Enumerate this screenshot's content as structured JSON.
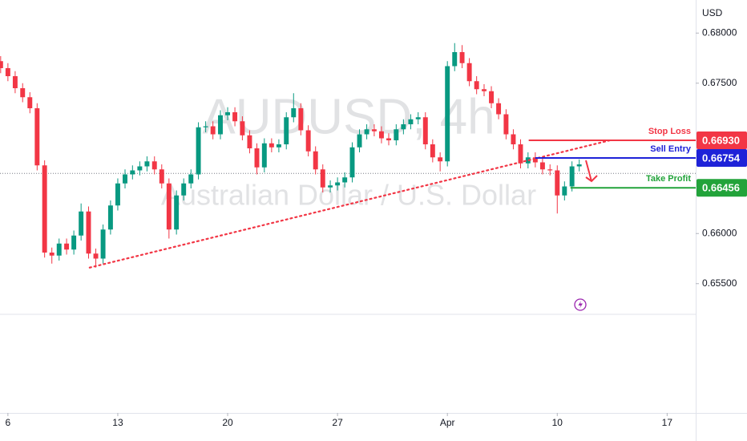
{
  "chart_data": {
    "type": "candlestick",
    "watermark": {
      "title": "AUDUSD, 4h",
      "subtitle": "Australian Dollar / U.S. Dollar"
    },
    "y_axis_label": "USD",
    "xlim": [
      -0.36,
      31.3
    ],
    "ylim": [
      0.6421,
      0.6833
    ],
    "xticks": [
      {
        "value": 0,
        "label": "6"
      },
      {
        "value": 5,
        "label": "13"
      },
      {
        "value": 10,
        "label": "20"
      },
      {
        "value": 15,
        "label": "27"
      },
      {
        "value": 20,
        "label": "Apr"
      },
      {
        "value": 25,
        "label": "10"
      },
      {
        "value": 30,
        "label": "17"
      }
    ],
    "yticks": [
      {
        "value": 0.68,
        "label": "0.68000"
      },
      {
        "value": 0.675,
        "label": "0.67500"
      },
      {
        "value": 0.66,
        "label": "0.66000"
      },
      {
        "value": 0.655,
        "label": "0.65500"
      }
    ],
    "up_color": "#089981",
    "down_color": "#f23645",
    "candles": {
      "x": [
        -0.33,
        0,
        0.33,
        0.67,
        1,
        1.33,
        1.67,
        2,
        2.33,
        2.67,
        3,
        3.33,
        3.67,
        4,
        4.33,
        4.67,
        5,
        5.33,
        5.67,
        6,
        6.33,
        6.67,
        7,
        7.33,
        7.67,
        8,
        8.33,
        8.67,
        9,
        9.33,
        9.67,
        10,
        10.33,
        10.67,
        11,
        11.33,
        11.67,
        12,
        12.33,
        12.67,
        13,
        13.33,
        13.67,
        14,
        14.33,
        14.67,
        15,
        15.33,
        15.67,
        16,
        16.33,
        16.67,
        17,
        17.33,
        17.67,
        18,
        18.33,
        18.67,
        19,
        19.33,
        19.67,
        20,
        20.33,
        20.67,
        21,
        21.33,
        21.67,
        22,
        22.33,
        22.67,
        23,
        23.33,
        23.67,
        24,
        24.33,
        24.67,
        25,
        25.33,
        25.67,
        26
      ],
      "open": [
        0.6772,
        0.6765,
        0.6757,
        0.6745,
        0.6736,
        0.6725,
        0.6668,
        0.6581,
        0.6578,
        0.659,
        0.6584,
        0.6598,
        0.6622,
        0.658,
        0.6575,
        0.6604,
        0.6628,
        0.665,
        0.6659,
        0.6663,
        0.6667,
        0.6672,
        0.6664,
        0.665,
        0.6604,
        0.6638,
        0.665,
        0.6659,
        0.6706,
        0.6707,
        0.6699,
        0.6718,
        0.6721,
        0.6712,
        0.6698,
        0.6685,
        0.6666,
        0.669,
        0.6686,
        0.6689,
        0.6716,
        0.6725,
        0.6703,
        0.6682,
        0.6664,
        0.6646,
        0.6648,
        0.6651,
        0.6656,
        0.6686,
        0.6699,
        0.6704,
        0.6702,
        0.6695,
        0.6693,
        0.6704,
        0.6709,
        0.6714,
        0.6716,
        0.6689,
        0.6676,
        0.6672,
        0.6767,
        0.6781,
        0.677,
        0.6752,
        0.6744,
        0.6742,
        0.673,
        0.6719,
        0.6699,
        0.6689,
        0.667,
        0.6676,
        0.6671,
        0.6664,
        0.6663,
        0.6638,
        0.6647,
        0.6667
      ],
      "high": [
        0.6777,
        0.677,
        0.6762,
        0.675,
        0.6741,
        0.673,
        0.6673,
        0.6586,
        0.6595,
        0.6595,
        0.6603,
        0.663,
        0.6627,
        0.6585,
        0.6609,
        0.6633,
        0.6655,
        0.6664,
        0.6668,
        0.6672,
        0.6677,
        0.6677,
        0.6669,
        0.6655,
        0.6643,
        0.6655,
        0.6664,
        0.6711,
        0.6712,
        0.6712,
        0.6723,
        0.6726,
        0.6726,
        0.6717,
        0.6703,
        0.669,
        0.6695,
        0.6695,
        0.6694,
        0.6721,
        0.674,
        0.673,
        0.6708,
        0.6687,
        0.6669,
        0.6653,
        0.6656,
        0.6661,
        0.6691,
        0.6704,
        0.6709,
        0.6709,
        0.6707,
        0.67,
        0.6709,
        0.6714,
        0.6719,
        0.6721,
        0.6721,
        0.6694,
        0.6681,
        0.6772,
        0.679,
        0.6788,
        0.6775,
        0.6757,
        0.6749,
        0.6747,
        0.6735,
        0.6724,
        0.6704,
        0.6694,
        0.6681,
        0.6681,
        0.6676,
        0.6669,
        0.6668,
        0.6652,
        0.6672,
        0.6674
      ],
      "low": [
        0.676,
        0.6752,
        0.674,
        0.6731,
        0.672,
        0.6663,
        0.6576,
        0.657,
        0.6573,
        0.6579,
        0.6579,
        0.6593,
        0.6575,
        0.6566,
        0.657,
        0.6599,
        0.6623,
        0.6645,
        0.6654,
        0.6658,
        0.6662,
        0.6659,
        0.6645,
        0.6595,
        0.6599,
        0.6633,
        0.6645,
        0.6654,
        0.6701,
        0.6694,
        0.6694,
        0.6713,
        0.6707,
        0.6693,
        0.668,
        0.6659,
        0.6661,
        0.6681,
        0.6681,
        0.6684,
        0.6711,
        0.6698,
        0.6677,
        0.6659,
        0.6641,
        0.6641,
        0.6643,
        0.6646,
        0.6651,
        0.6681,
        0.6694,
        0.6697,
        0.669,
        0.6688,
        0.6688,
        0.6699,
        0.6704,
        0.6709,
        0.6684,
        0.6671,
        0.6662,
        0.6667,
        0.6762,
        0.6765,
        0.6747,
        0.6739,
        0.6737,
        0.6725,
        0.6714,
        0.6694,
        0.6684,
        0.6665,
        0.6665,
        0.6666,
        0.6659,
        0.6658,
        0.662,
        0.6633,
        0.6642,
        0.6662
      ],
      "close": [
        0.6765,
        0.6757,
        0.6745,
        0.6736,
        0.6725,
        0.6668,
        0.6581,
        0.6578,
        0.659,
        0.6584,
        0.6598,
        0.6622,
        0.658,
        0.6575,
        0.6604,
        0.6628,
        0.665,
        0.6659,
        0.6663,
        0.6667,
        0.6672,
        0.6664,
        0.665,
        0.6604,
        0.6638,
        0.665,
        0.6659,
        0.6706,
        0.6707,
        0.6699,
        0.6718,
        0.6721,
        0.6712,
        0.6698,
        0.6685,
        0.6666,
        0.669,
        0.6686,
        0.6689,
        0.6716,
        0.6725,
        0.6703,
        0.6682,
        0.6664,
        0.6646,
        0.6648,
        0.6651,
        0.6656,
        0.6686,
        0.6699,
        0.6704,
        0.6702,
        0.6695,
        0.6693,
        0.6704,
        0.6709,
        0.6714,
        0.6716,
        0.6689,
        0.6676,
        0.6672,
        0.6767,
        0.6781,
        0.677,
        0.6752,
        0.6744,
        0.6742,
        0.673,
        0.6719,
        0.6699,
        0.6689,
        0.667,
        0.6676,
        0.6671,
        0.6664,
        0.6663,
        0.6638,
        0.6647,
        0.6667,
        0.6669
      ]
    },
    "price_line": 0.666,
    "trendline": {
      "color": "#f23645",
      "x": [
        3.72,
        27.4
      ],
      "y": [
        0.6566,
        0.6693
      ]
    },
    "levels": [
      {
        "name": "Stop Loss",
        "value": 0.6693,
        "value_label": "0.66930",
        "color": "#f23645",
        "x_start": 23.7
      },
      {
        "name": "Sell Entry",
        "value": 0.66754,
        "value_label": "0.66754",
        "color": "#1e22d8",
        "x_start": 24.0
      },
      {
        "name": "Take Profit",
        "value": 0.66456,
        "value_label": "0.66456",
        "color": "#22a33a",
        "x_start": 25.6
      }
    ]
  }
}
